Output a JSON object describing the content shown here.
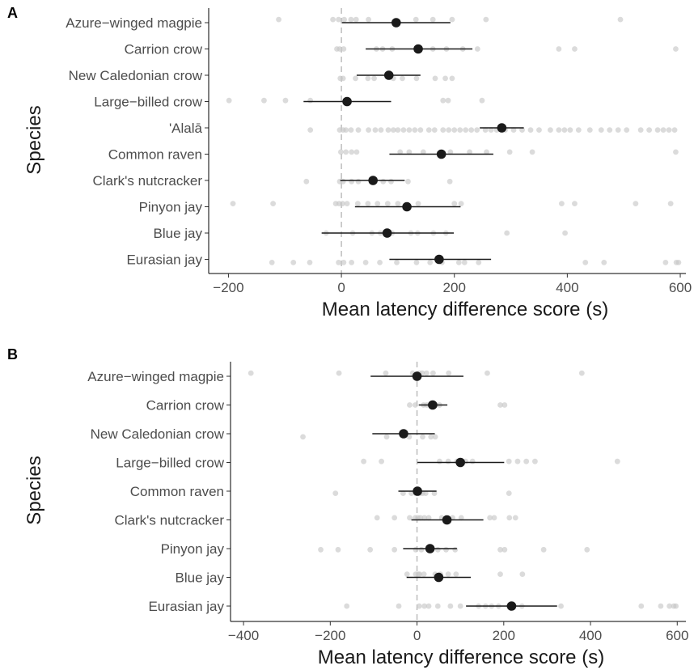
{
  "chart_data": [
    {
      "type": "scatter",
      "panel_label": "A",
      "xlabel": "Mean latency difference score (s)",
      "ylabel": "Species",
      "xlim": [
        -235,
        610
      ],
      "xticks": [
        -200,
        0,
        200,
        400,
        600
      ],
      "reference_line_x": 0,
      "categories": [
        "Azure−winged magpie",
        "Carrion crow",
        "New Caledonian crow",
        "Large−billed crow",
        "'Alalā",
        "Common raven",
        "Clark's nutcracker",
        "Pinyon jay",
        "Blue jay",
        "Eurasian jay"
      ],
      "means": [
        97,
        136,
        84,
        10,
        284,
        177,
        56,
        116,
        81,
        173
      ],
      "ci_low": [
        1,
        43,
        27,
        -67,
        245,
        85,
        -2,
        24,
        -35,
        85
      ],
      "ci_high": [
        193,
        232,
        140,
        88,
        323,
        269,
        112,
        211,
        199,
        265
      ],
      "points": [
        [
          -111,
          -15,
          -5,
          5,
          17,
          26,
          48,
          132,
          162,
          196,
          256,
          494
        ],
        [
          -8,
          -3,
          4,
          62,
          73,
          90,
          135,
          162,
          186,
          215,
          241,
          385,
          413,
          592
        ],
        [
          -2,
          3,
          25,
          47,
          58,
          92,
          108,
          133,
          166,
          184,
          196
        ],
        [
          -199,
          -137,
          -99,
          -55,
          180,
          189,
          249
        ],
        [
          -55,
          -3,
          3,
          8,
          17,
          30,
          48,
          60,
          70,
          83,
          92,
          100,
          110,
          120,
          130,
          140,
          155,
          165,
          180,
          190,
          200,
          210,
          220,
          230,
          240,
          255,
          265,
          275,
          290,
          305,
          320,
          335,
          350,
          370,
          385,
          395,
          405,
          420,
          440,
          460,
          475,
          490,
          505,
          530,
          545,
          560,
          570,
          580,
          590
        ],
        [
          -1,
          8,
          18,
          27,
          104,
          120,
          145,
          193,
          227,
          257,
          298,
          338,
          592
        ],
        [
          -62,
          -3,
          3,
          18,
          30,
          58,
          74,
          88,
          118,
          192
        ],
        [
          -192,
          -121,
          -10,
          -4,
          2,
          10,
          29,
          47,
          64,
          82,
          100,
          136,
          200,
          212,
          390,
          413,
          521,
          583
        ],
        [
          -27,
          20,
          54,
          69,
          90,
          123,
          135,
          163,
          185,
          293,
          396
        ],
        [
          -123,
          -85,
          -56,
          -5,
          4,
          18,
          43,
          68,
          98,
          133,
          157,
          178,
          208,
          218,
          243,
          432,
          465,
          574,
          593,
          597
        ]
      ]
    },
    {
      "type": "scatter",
      "panel_label": "B",
      "xlabel": "Mean latency difference score (s)",
      "ylabel": "Species",
      "xlim": [
        -430,
        620
      ],
      "xticks": [
        -400,
        -200,
        0,
        200,
        400,
        600
      ],
      "reference_line_x": 0,
      "categories": [
        "Azure−winged magpie",
        "Carrion crow",
        "New Caledonian crow",
        "Large−billed crow",
        "Common raven",
        "Clark's nutcracker",
        "Pinyon jay",
        "Blue jay",
        "Eurasian jay"
      ],
      "means": [
        0,
        36,
        -31,
        100,
        1,
        69,
        30,
        50,
        218
      ],
      "ci_low": [
        -107,
        4,
        -103,
        1,
        -43,
        -13,
        -32,
        -24,
        113
      ],
      "ci_high": [
        107,
        70,
        41,
        201,
        45,
        153,
        92,
        124,
        323
      ],
      "points": [
        [
          -383,
          -180,
          -72,
          -10,
          5,
          12,
          22,
          37,
          73,
          162,
          380
        ],
        [
          -17,
          -4,
          15,
          22,
          32,
          44,
          52,
          192,
          202
        ],
        [
          -263,
          -70,
          -18,
          13,
          32,
          42
        ],
        [
          -123,
          -82,
          52,
          72,
          92,
          112,
          128,
          212,
          232,
          252,
          272,
          462
        ],
        [
          -188,
          -32,
          -13,
          -3,
          3,
          7,
          13,
          20,
          40,
          212
        ],
        [
          -92,
          -52,
          -17,
          -4,
          2,
          8,
          17,
          27,
          57,
          82,
          102,
          168,
          178,
          213,
          227
        ],
        [
          -222,
          -182,
          -108,
          -52,
          -3,
          10,
          28,
          48,
          67,
          88,
          192,
          202,
          292,
          392
        ],
        [
          -23,
          -3,
          3,
          6,
          16,
          42,
          54,
          72,
          90,
          192,
          243
        ],
        [
          -162,
          -42,
          5,
          17,
          27,
          48,
          77,
          100,
          142,
          158,
          172,
          188,
          212,
          242,
          332,
          517,
          562,
          582,
          592,
          597
        ]
      ]
    }
  ]
}
